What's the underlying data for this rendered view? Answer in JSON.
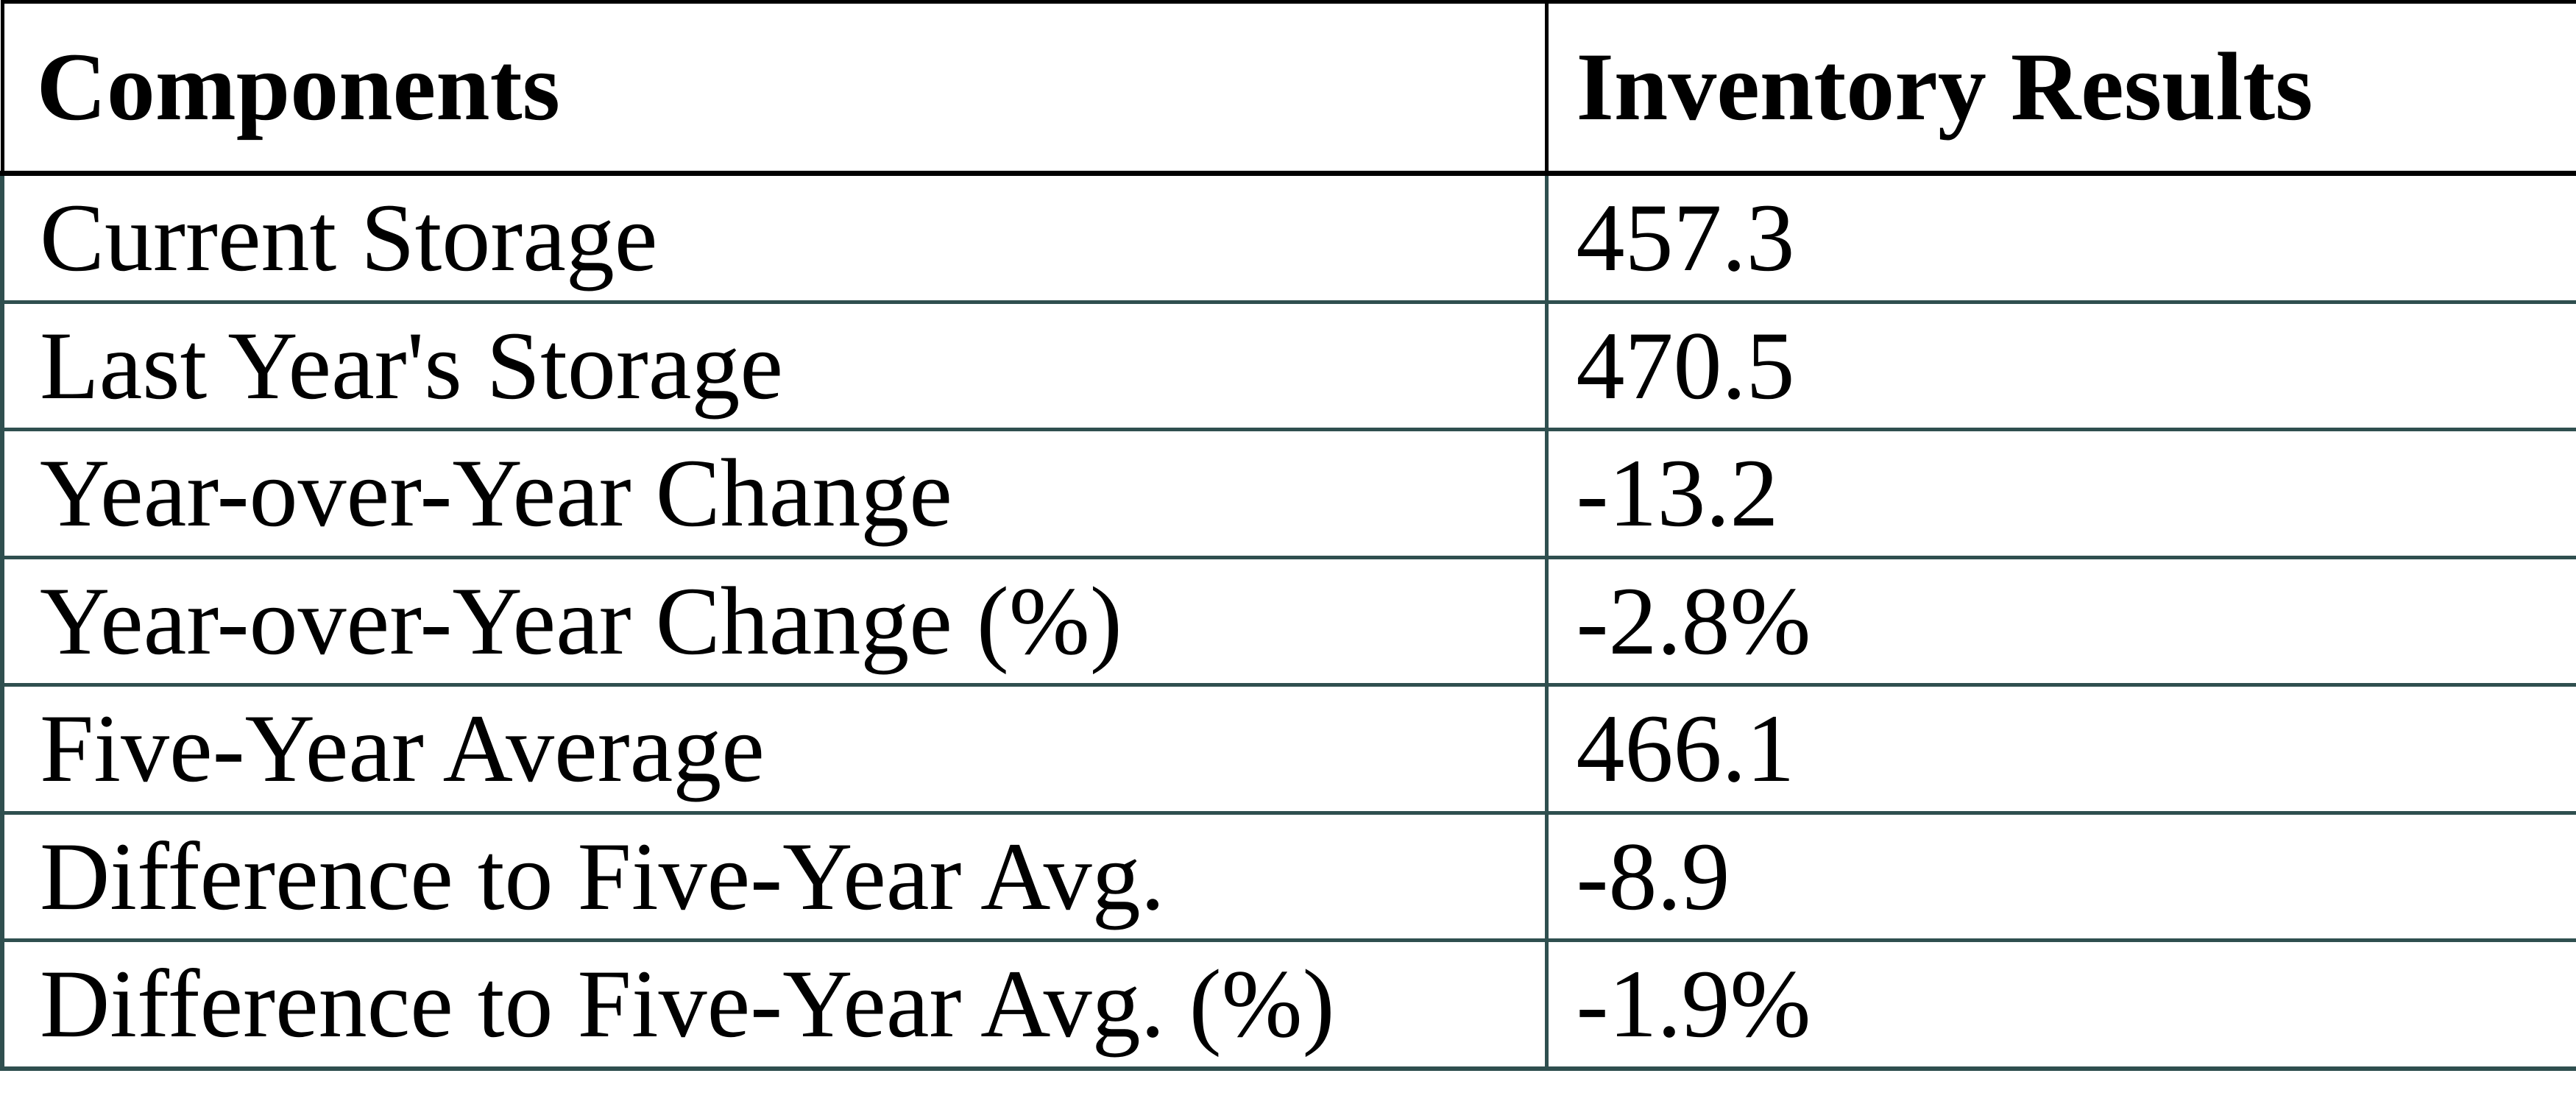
{
  "table": {
    "header": {
      "components": "Components",
      "inventory_results": "Inventory Results"
    },
    "rows": [
      {
        "label": "Current Storage",
        "value": "457.3"
      },
      {
        "label": "Last Year's Storage",
        "value": "470.5"
      },
      {
        "label": "Year-over-Year Change",
        "value": "-13.2"
      },
      {
        "label": "Year-over-Year Change (%)",
        "value": "-2.8%"
      },
      {
        "label": "Five-Year Average",
        "value": "466.1"
      },
      {
        "label": "Difference to Five-Year Avg.",
        "value": "-8.9"
      },
      {
        "label": "Difference to Five-Year Avg. (%)",
        "value": "-1.9%"
      }
    ],
    "colors": {
      "header_border": "#000000",
      "body_border": "#2f4f4f",
      "text": "#000000",
      "background": "#ffffff"
    }
  }
}
